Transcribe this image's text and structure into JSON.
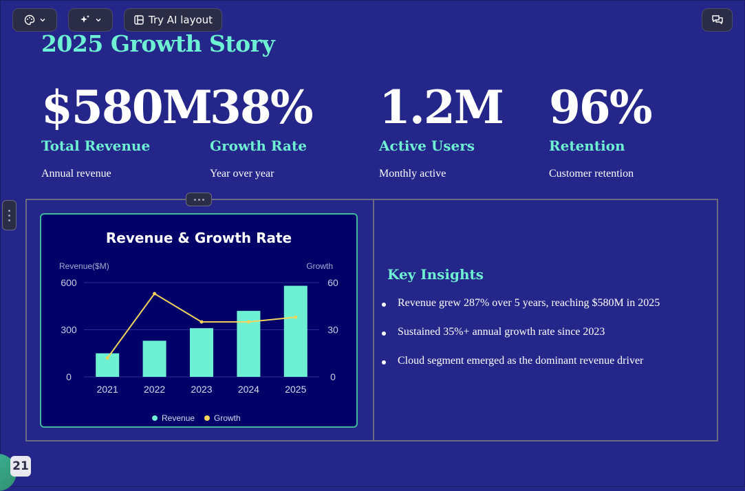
{
  "toolbar": {
    "theme_icon": "palette-icon",
    "ai_icon": "sparkle-icon",
    "layout_label": "Try AI layout",
    "layout_icon": "layout-icon",
    "comment_icon": "comment-icon"
  },
  "slide": {
    "title": "2025 Growth Story",
    "stats": [
      {
        "value": "$580M",
        "label": "Total Revenue",
        "sub": "Annual revenue"
      },
      {
        "value": "38%",
        "label": "Growth Rate",
        "sub": "Year over year"
      },
      {
        "value": "1.2M",
        "label": "Active Users",
        "sub": "Monthly active"
      },
      {
        "value": "96%",
        "label": "Retention",
        "sub": "Customer retention"
      }
    ],
    "insights": {
      "title": "Key Insights",
      "items": [
        "Revenue grew 287% over 5 years, reaching $580M in 2025",
        "Sustained 35%+ annual growth rate since 2023",
        "Cloud segment emerged as the dominant revenue driver"
      ]
    },
    "page_number": "21"
  },
  "colors": {
    "background": "#242689",
    "accent": "#6ef0d2",
    "chart_bg": "#000068",
    "bar": "#6ef0d2",
    "line": "#f2d45c"
  },
  "chart_data": {
    "type": "bar",
    "title": "Revenue & Growth Rate",
    "categories": [
      "2021",
      "2022",
      "2023",
      "2024",
      "2025"
    ],
    "series": [
      {
        "name": "Revenue",
        "type": "bar",
        "axis": "left",
        "values": [
          150,
          230,
          310,
          420,
          580
        ]
      },
      {
        "name": "Growth",
        "type": "line",
        "axis": "right",
        "values": [
          12,
          53,
          35,
          35,
          38
        ]
      }
    ],
    "ylabel": "Revenue($M)",
    "y2label": "Growth",
    "ylim": [
      0,
      600
    ],
    "y2lim": [
      0,
      60
    ],
    "yticks": [
      "0",
      "300",
      "600"
    ],
    "y2ticks": [
      "0",
      "30",
      "60"
    ],
    "legend": "bottom",
    "grid": true
  }
}
